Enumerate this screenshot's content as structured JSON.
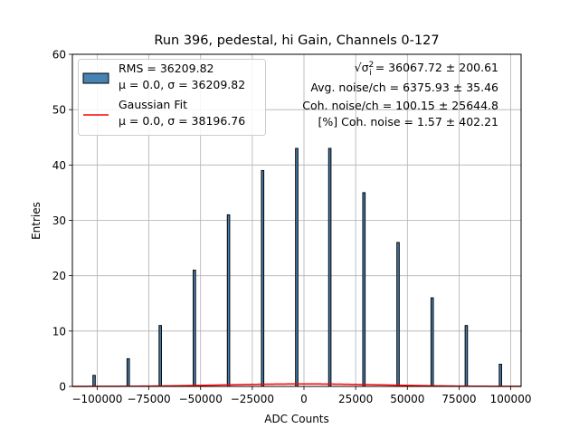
{
  "chart_data": {
    "type": "bar",
    "title": "Run 396, pedestal, hi Gain, Channels 0-127",
    "xlabel": "ADC Counts",
    "ylabel": "Entries",
    "xlim": [
      -112000,
      105000
    ],
    "ylim": [
      0,
      60
    ],
    "grid": true,
    "xticks": [
      -100000,
      -75000,
      -50000,
      -25000,
      0,
      25000,
      50000,
      75000,
      100000
    ],
    "xtick_labels": [
      "−100000",
      "−75000",
      "−50000",
      "−25000",
      "0",
      "25000",
      "50000",
      "75000",
      "100000"
    ],
    "yticks": [
      0,
      10,
      20,
      30,
      40,
      50,
      60
    ],
    "ytick_labels": [
      "0",
      "10",
      "20",
      "30",
      "40",
      "50",
      "60"
    ],
    "histogram": {
      "name": "RMS = 36209.82",
      "color": "#4682b4",
      "edge_color": "#000000",
      "peaks": [
        {
          "x": -101500,
          "counts": 2
        },
        {
          "x": -85000,
          "counts": 5
        },
        {
          "x": -69500,
          "counts": 11
        },
        {
          "x": -53000,
          "counts": 21
        },
        {
          "x": -36500,
          "counts": 31
        },
        {
          "x": -20000,
          "counts": 39
        },
        {
          "x": -3500,
          "counts": 43
        },
        {
          "x": 12500,
          "counts": 43
        },
        {
          "x": 29000,
          "counts": 35
        },
        {
          "x": 45500,
          "counts": 26
        },
        {
          "x": 62000,
          "counts": 16
        },
        {
          "x": 78500,
          "counts": 11
        },
        {
          "x": 95000,
          "counts": 4
        }
      ]
    },
    "fit": {
      "name": "Gaussian Fit",
      "color": "#ff0000",
      "mu": 0.0,
      "sigma": 38196.76,
      "peak_entries": 0.45
    },
    "legend": {
      "placement": "top-left",
      "entries": [
        {
          "line1": "RMS = 36209.82",
          "line2": "μ = 0.0, σ = 36209.82"
        },
        {
          "line1": "Gaussian Fit",
          "line2": "μ = 0.0, σ = 38196.76"
        }
      ]
    },
    "annotations": [
      {
        "prefix": "√σ",
        "sup": "2",
        "sub": "i",
        "text": " = 36067.72 ± 200.61"
      },
      {
        "text": "Avg. noise/ch = 6375.93 ± 35.46"
      },
      {
        "text": "Coh. noise/ch = 100.15 ± 25644.8"
      },
      {
        "text": "[%] Coh. noise = 1.57 ± 402.21"
      }
    ]
  }
}
